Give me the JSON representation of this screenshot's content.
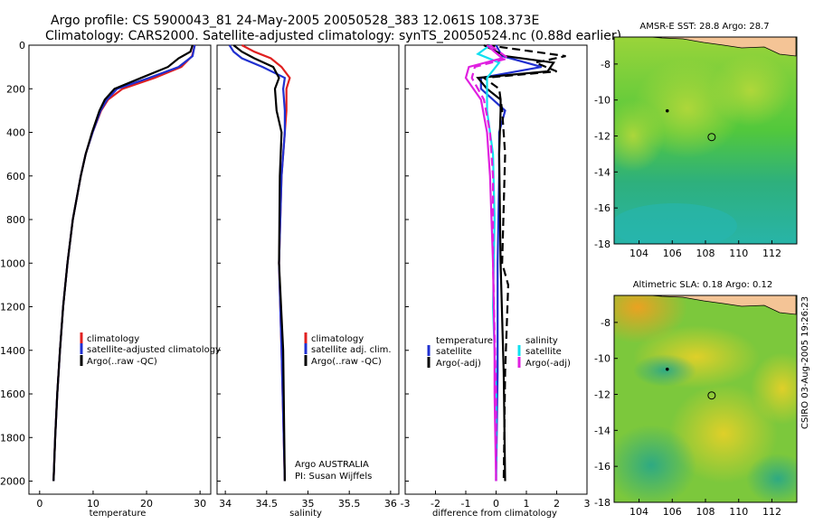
{
  "title_line1": "Argo profile: CS 5900043_81 24-May-2005 20050528_383 12.061S 108.373E",
  "title_line2": "Climatology: CARS2000. Satellite-adjusted climatology: synTS_20050524.nc (0.88d earlier)",
  "stamp": "CSIRO 03-Aug-2005 19:26:23",
  "colors": {
    "clim": "#e02020",
    "sat": "#2030d0",
    "argo": "#000000",
    "cyan": "#10e0f0",
    "magenta": "#e020e0"
  },
  "chart_data": [
    {
      "type": "line",
      "name": "temperature-profile",
      "xlabel": "temperature",
      "xlim": [
        -2,
        32
      ],
      "ylim": [
        2060,
        0
      ],
      "xticks": [
        0,
        10,
        20,
        30
      ],
      "yticks": [
        0,
        200,
        400,
        600,
        800,
        1000,
        1200,
        1400,
        1600,
        1800,
        2000
      ],
      "legend": [
        "climatology",
        "satellite-adjusted climatology",
        "Argo(..raw -QC)"
      ],
      "series": [
        {
          "name": "climatology",
          "color": "clim",
          "dash": false,
          "depth": [
            0,
            50,
            100,
            150,
            200,
            250,
            300,
            400,
            500,
            600,
            800,
            1000,
            1200,
            1400,
            1600,
            1800,
            2000
          ],
          "values": [
            29.0,
            28.5,
            26.5,
            21.5,
            15.5,
            12.8,
            11.5,
            9.9,
            8.6,
            7.7,
            6.2,
            5.2,
            4.4,
            3.8,
            3.3,
            2.9,
            2.6
          ]
        },
        {
          "name": "satellite",
          "color": "sat",
          "dash": false,
          "depth": [
            0,
            50,
            100,
            150,
            200,
            250,
            300,
            400,
            500,
            600,
            800,
            1000,
            1200,
            1400,
            1600,
            1800,
            2000
          ],
          "values": [
            29.0,
            28.6,
            26.0,
            20.5,
            14.5,
            12.6,
            11.4,
            9.9,
            8.6,
            7.7,
            6.2,
            5.2,
            4.4,
            3.8,
            3.3,
            2.9,
            2.6
          ]
        },
        {
          "name": "argo",
          "color": "argo",
          "dash": false,
          "depth": [
            0,
            30,
            60,
            100,
            150,
            200,
            250,
            300,
            400,
            500,
            600,
            800,
            1000,
            1200,
            1400,
            1600,
            1800,
            2000
          ],
          "values": [
            28.6,
            28.2,
            26.0,
            24.0,
            19.0,
            14.0,
            12.2,
            11.2,
            9.8,
            8.6,
            7.7,
            6.2,
            5.2,
            4.4,
            3.8,
            3.3,
            2.9,
            2.6
          ]
        }
      ]
    },
    {
      "type": "line",
      "name": "salinity-profile",
      "xlabel": "salinity",
      "xlim": [
        33.9,
        36.1
      ],
      "ylim": [
        2060,
        0
      ],
      "xticks": [
        34,
        34.5,
        35,
        35.5,
        36
      ],
      "legend": [
        "climatology",
        "satellite adj. clim.",
        "Argo(..raw -QC)"
      ],
      "annotation": [
        "Argo AUSTRALIA",
        "PI: Susan Wijffels"
      ],
      "series": [
        {
          "name": "climatology",
          "color": "clim",
          "dash": false,
          "depth": [
            0,
            30,
            60,
            100,
            150,
            200,
            300,
            400,
            600,
            1000,
            1400,
            2000
          ],
          "values": [
            34.2,
            34.35,
            34.55,
            34.68,
            34.78,
            34.74,
            34.74,
            34.72,
            34.68,
            34.65,
            34.68,
            34.72
          ]
        },
        {
          "name": "satellite",
          "color": "sat",
          "dash": false,
          "depth": [
            0,
            30,
            60,
            100,
            150,
            200,
            300,
            400,
            600,
            1000,
            1400,
            2000
          ],
          "values": [
            34.05,
            34.1,
            34.2,
            34.45,
            34.72,
            34.7,
            34.72,
            34.72,
            34.68,
            34.65,
            34.68,
            34.72
          ]
        },
        {
          "name": "argo",
          "color": "argo",
          "dash": false,
          "depth": [
            0,
            30,
            60,
            100,
            150,
            200,
            300,
            400,
            600,
            1000,
            1400,
            2000
          ],
          "values": [
            34.1,
            34.2,
            34.35,
            34.58,
            34.65,
            34.6,
            34.62,
            34.68,
            34.66,
            34.65,
            34.7,
            34.72
          ]
        }
      ]
    },
    {
      "type": "line",
      "name": "difference-profile",
      "xlabel": "difference from climatology",
      "xlim": [
        -3,
        3
      ],
      "ylim": [
        2060,
        0
      ],
      "xticks": [
        -3,
        -2,
        -1,
        0,
        1,
        2,
        3
      ],
      "legend_t": [
        "temperature",
        "satellite",
        "Argo(-adj)"
      ],
      "legend_s": [
        "salinity",
        "satellite",
        "Argo(-adj)"
      ],
      "series": [
        {
          "name": "temp-satellite",
          "color": "sat",
          "dash": false,
          "depth": [
            0,
            50,
            100,
            150,
            200,
            250,
            300,
            400,
            600,
            1000,
            1500,
            2000
          ],
          "values": [
            0.0,
            0.2,
            1.5,
            -0.5,
            -0.5,
            -0.1,
            0.3,
            0.1,
            0.1,
            0.05,
            0.05,
            0.0
          ]
        },
        {
          "name": "temp-argo",
          "color": "argo",
          "dash": false,
          "depth": [
            0,
            50,
            80,
            120,
            150,
            200,
            250,
            300,
            500,
            1000,
            1500,
            2000
          ],
          "values": [
            -0.4,
            0.3,
            1.9,
            1.7,
            -0.6,
            -0.3,
            0.15,
            0.15,
            0.1,
            0.15,
            0.25,
            0.3
          ]
        },
        {
          "name": "temp-argo-adj",
          "color": "argo",
          "dash": true,
          "depth": [
            0,
            50,
            80,
            120,
            150,
            200,
            300,
            500,
            1000,
            1100,
            1500,
            2000
          ],
          "values": [
            -0.3,
            2.3,
            1.3,
            2.0,
            -0.4,
            0.1,
            0.2,
            0.3,
            0.2,
            0.4,
            0.3,
            0.25
          ]
        },
        {
          "name": "sal-satellite",
          "color": "cyan",
          "dash": false,
          "depth": [
            0,
            40,
            80,
            150,
            300,
            500,
            800,
            1200,
            1600,
            2000
          ],
          "values": [
            -0.2,
            -0.6,
            0.1,
            -0.3,
            -0.3,
            -0.1,
            -0.05,
            -0.1,
            0.0,
            0.0
          ]
        },
        {
          "name": "sal-argo",
          "color": "magenta",
          "dash": false,
          "depth": [
            0,
            60,
            100,
            150,
            250,
            400,
            600,
            1000,
            1400,
            1600,
            2000
          ],
          "values": [
            -0.3,
            0.2,
            -0.9,
            -1.0,
            -0.5,
            -0.3,
            -0.2,
            -0.1,
            -0.05,
            -0.05,
            0.0
          ]
        },
        {
          "name": "sal-argo-adj",
          "color": "magenta",
          "dash": true,
          "depth": [
            0,
            60,
            100,
            150,
            250,
            400,
            600,
            1000,
            1600,
            2000
          ],
          "values": [
            -0.2,
            0.4,
            -0.7,
            -0.8,
            -0.4,
            -0.2,
            -0.1,
            -0.1,
            0.0,
            0.0
          ]
        }
      ]
    },
    {
      "type": "heatmap",
      "name": "sst-map",
      "title": "AMSR-E SST: 28.8 Argo: 28.7",
      "xlim": [
        102.5,
        113.5
      ],
      "ylim": [
        -18,
        -6.5
      ],
      "xticks": [
        104,
        106,
        108,
        110,
        112
      ],
      "yticks": [
        -8,
        -10,
        -12,
        -14,
        -16,
        -18
      ],
      "argo_position": [
        108.373,
        -12.061
      ],
      "prev_position": [
        105.7,
        -10.6
      ]
    },
    {
      "type": "heatmap",
      "name": "sla-map",
      "title": "Altimetric SLA: 0.18 Argo: 0.12",
      "xlim": [
        102.5,
        113.5
      ],
      "ylim": [
        -18,
        -6.5
      ],
      "xticks": [
        104,
        106,
        108,
        110,
        112
      ],
      "yticks": [
        -8,
        -10,
        -12,
        -14,
        -16,
        -18
      ],
      "argo_position": [
        108.373,
        -12.061
      ],
      "prev_position": [
        105.7,
        -10.6
      ]
    }
  ]
}
